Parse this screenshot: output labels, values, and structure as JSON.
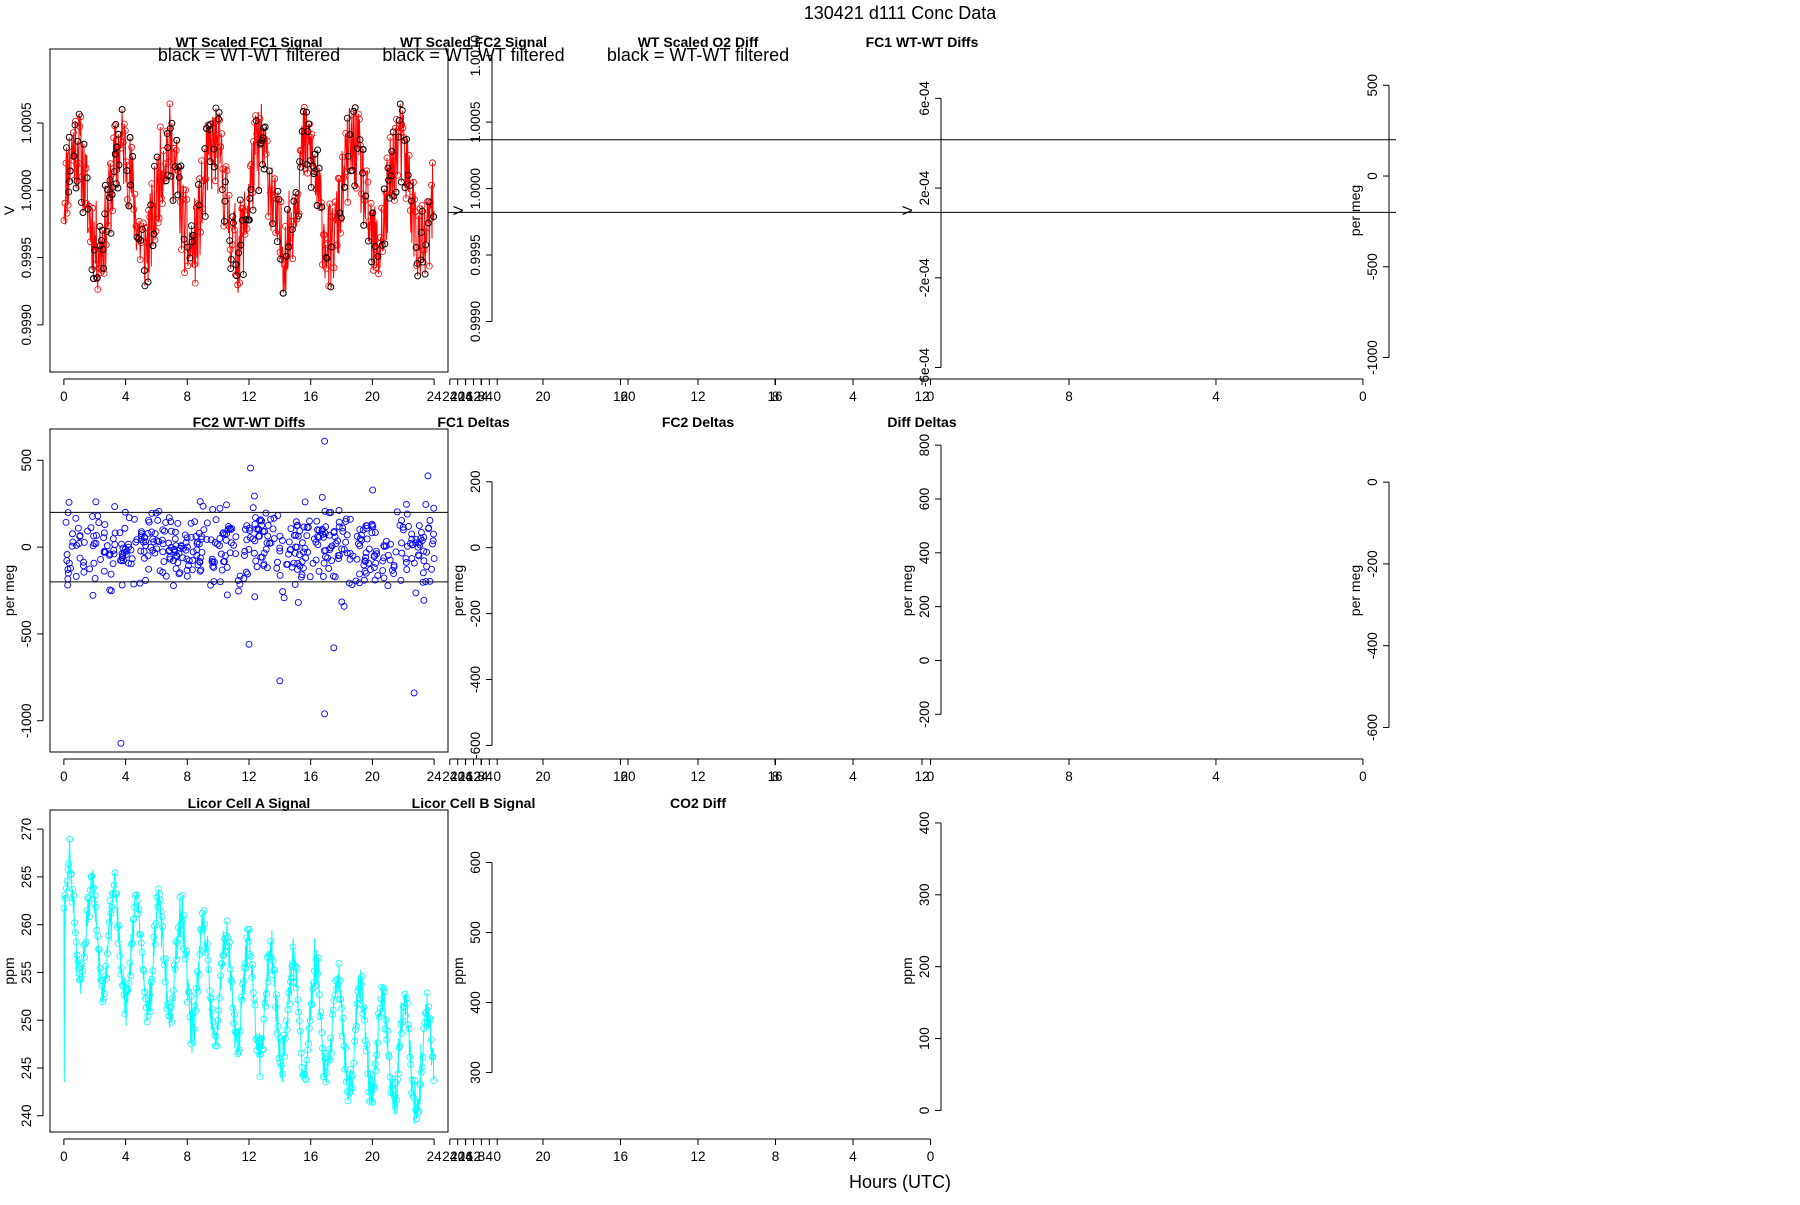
{
  "figure": {
    "title": "130421    d111    Conc Data",
    "xlabel": "Hours (UTC)"
  },
  "chart_data": [
    {
      "id": "p1",
      "type": "line",
      "title": "WT Scaled FC1 Signal",
      "annotation": "black = WT-WT filtered",
      "xlabel": "",
      "ylabel": "V",
      "xlim": [
        -0.9,
        24.9
      ],
      "ylim": [
        0.99865,
        1.00105
      ],
      "xticks": [
        0,
        4,
        8,
        12,
        16,
        20,
        24
      ],
      "yticks": [
        0.999,
        0.9995,
        1.0,
        1.0005
      ],
      "ytick_labels": [
        "0.9990",
        "0.9995",
        "1.0000",
        "1.0005"
      ],
      "grid": false,
      "color": "#ff0000",
      "overlay_color": "#000000",
      "gen": {
        "kind": "signal",
        "base": 0.99995,
        "amp": 0.00038,
        "slope": 0.0,
        "noise": 0.00042,
        "period": 3.0,
        "n": 700,
        "seed": 11,
        "overlay": 260
      }
    },
    {
      "id": "p2",
      "type": "line",
      "title": "WT Scaled FC2 Signal",
      "annotation": "black = WT-WT filtered",
      "xlabel": "",
      "ylabel": "V",
      "xlim": [
        -0.9,
        24.9
      ],
      "ylim": [
        0.99862,
        1.00105
      ],
      "xticks": [
        0,
        4,
        8,
        12,
        16,
        20,
        24
      ],
      "yticks": [
        0.999,
        0.9995,
        1.0,
        1.0005,
        1.001
      ],
      "ytick_labels": [
        "0.9990",
        "0.9995",
        "1.0000",
        "1.0005",
        "1.0010"
      ],
      "grid": false,
      "color": "#0000ff",
      "overlay_color": "#000000",
      "gen": {
        "kind": "signal",
        "base": 0.99992,
        "amp": 0.0004,
        "slope": 0.0,
        "noise": 0.00045,
        "period": 3.0,
        "n": 700,
        "seed": 23,
        "overlay": 240
      }
    },
    {
      "id": "p3",
      "type": "line",
      "title": "WT Scaled O2 Diff",
      "annotation": "black = WT-WT filtered",
      "xlabel": "",
      "ylabel": "V",
      "xlim": [
        -0.9,
        24.9
      ],
      "ylim": [
        -0.00062,
        0.00082
      ],
      "xticks": [
        0,
        4,
        8,
        12,
        16,
        20,
        24
      ],
      "yticks": [
        -0.0006,
        -0.0002,
        0.0002,
        0.0006
      ],
      "ytick_labels": [
        "-6e-04",
        "-2e-04",
        "2e-04",
        "6e-04"
      ],
      "grid": false,
      "color": "#a020f0",
      "overlay_color": "#000000",
      "gen": {
        "kind": "o2diff",
        "n": 620,
        "seed": 37,
        "overlay": 120
      }
    },
    {
      "id": "p4",
      "type": "scatter",
      "title": "FC1 WT-WT Diffs",
      "xlabel": "",
      "ylabel": "per meg",
      "xlim": [
        -0.9,
        24.9
      ],
      "ylim": [
        -1080,
        700
      ],
      "xticks": [
        0,
        4,
        8,
        12,
        16,
        20,
        24
      ],
      "yticks": [
        -1000,
        -500,
        0,
        500
      ],
      "ytick_labels": [
        "-1000",
        "-500",
        "0",
        "500"
      ],
      "hlines": [
        200,
        -200
      ],
      "grid": false,
      "color": "#ff0000",
      "gen": {
        "kind": "scatter",
        "n": 520,
        "sd": 125,
        "seed": 41,
        "outliers": [
          [
            4.3,
            640
          ],
          [
            3.7,
            -1010
          ],
          [
            11.9,
            520
          ],
          [
            15.8,
            520
          ],
          [
            20.0,
            525
          ],
          [
            20.0,
            -580
          ],
          [
            23.0,
            -935
          ],
          [
            22.5,
            450
          ]
        ]
      }
    },
    {
      "id": "p5",
      "type": "scatter",
      "title": "FC2 WT-WT Diffs",
      "xlabel": "",
      "ylabel": "per meg",
      "xlim": [
        -0.9,
        24.9
      ],
      "ylim": [
        -1180,
        680
      ],
      "xticks": [
        0,
        4,
        8,
        12,
        16,
        20,
        24
      ],
      "yticks": [
        -1000,
        -500,
        0,
        500
      ],
      "ytick_labels": [
        "-1000",
        "-500",
        "0",
        "500"
      ],
      "hlines": [
        200,
        -200
      ],
      "grid": false,
      "color": "#0000ff",
      "gen": {
        "kind": "scatter",
        "n": 520,
        "sd": 120,
        "seed": 53,
        "outliers": [
          [
            3.7,
            -1130
          ],
          [
            16.9,
            610
          ],
          [
            16.9,
            -960
          ],
          [
            14.0,
            -770
          ],
          [
            17.5,
            -580
          ],
          [
            12.0,
            -560
          ],
          [
            22.7,
            -840
          ],
          [
            12.1,
            455
          ],
          [
            23.6,
            410
          ]
        ]
      }
    },
    {
      "id": "p6",
      "type": "line",
      "title": "FC1 Deltas",
      "xlabel": "",
      "ylabel": "per meg",
      "xlim": [
        -0.9,
        24.9
      ],
      "ylim": [
        -620,
        360
      ],
      "xticks": [
        0,
        4,
        8,
        12,
        16,
        20,
        24
      ],
      "yticks": [
        -600,
        -400,
        -200,
        0,
        200
      ],
      "ytick_labels": [
        "-600",
        "-400",
        "-200",
        "0",
        "200"
      ],
      "grid": false,
      "color": "#ff0000",
      "gen": {
        "kind": "deltas1",
        "n": 560,
        "seed": 61
      }
    },
    {
      "id": "p7",
      "type": "line",
      "title": "FC2 Deltas",
      "xlabel": "",
      "ylabel": "per meg",
      "xlim": [
        -0.9,
        24.9
      ],
      "ylim": [
        -340,
        860
      ],
      "xticks": [
        0,
        4,
        8,
        12,
        16,
        20,
        24
      ],
      "yticks": [
        -200,
        0,
        200,
        400,
        600,
        800
      ],
      "ytick_labels": [
        "-200",
        "0",
        "200",
        "400",
        "600",
        "800"
      ],
      "grid": false,
      "color": "#0000ff",
      "gen": {
        "kind": "deltas2",
        "n": 560,
        "seed": 71
      }
    },
    {
      "id": "p8",
      "type": "line",
      "title": "Diff Deltas",
      "xlabel": "",
      "ylabel": "per meg",
      "xlim": [
        -0.9,
        24.9
      ],
      "ylim": [
        -660,
        130
      ],
      "xticks": [
        0,
        4,
        8,
        12,
        16,
        20,
        24
      ],
      "yticks": [
        -600,
        -400,
        -200,
        0
      ],
      "ytick_labels": [
        "-600",
        "-400",
        "-200",
        "0"
      ],
      "grid": false,
      "color": "#006400",
      "gen": {
        "kind": "diffdeltas",
        "n": 600,
        "seed": 83
      }
    },
    {
      "id": "p9",
      "type": "line",
      "title": "Licor Cell A Signal",
      "xlabel": "",
      "ylabel": "ppm",
      "xlim": [
        -0.9,
        24.9
      ],
      "ylim": [
        238.3,
        272
      ],
      "xticks": [
        0,
        4,
        8,
        12,
        16,
        20,
        24
      ],
      "yticks": [
        240,
        245,
        250,
        255,
        260,
        265,
        270
      ],
      "ytick_labels": [
        "240",
        "245",
        "250",
        "255",
        "260",
        "265",
        "270"
      ],
      "grid": false,
      "color": "#00ffff",
      "gen": {
        "kind": "licorA",
        "n": 900,
        "seed": 97
      }
    },
    {
      "id": "p10",
      "type": "line",
      "title": "Licor Cell B Signal",
      "xlabel": "",
      "ylabel": "ppm",
      "xlim": [
        -0.9,
        24.9
      ],
      "ylim": [
        215,
        675
      ],
      "xticks": [
        0,
        4,
        8,
        12,
        16,
        20,
        24
      ],
      "yticks": [
        300,
        400,
        500,
        600
      ],
      "ytick_labels": [
        "300",
        "400",
        "500",
        "600"
      ],
      "grid": false,
      "color": "#ffa500",
      "gen": {
        "kind": "licorB",
        "n": 700,
        "seed": 101
      }
    },
    {
      "id": "p11",
      "type": "line",
      "title": "CO2 Diff",
      "xlabel": "",
      "ylabel": "ppm",
      "xlim": [
        -0.9,
        24.9
      ],
      "ylim": [
        -30,
        418
      ],
      "xticks": [
        0,
        4,
        8,
        12,
        16,
        20,
        24
      ],
      "yticks": [
        0,
        100,
        200,
        300,
        400
      ],
      "ytick_labels": [
        "0",
        "100",
        "200",
        "300",
        "400"
      ],
      "grid": false,
      "color": "#8b0000",
      "gen": {
        "kind": "co2diff",
        "n": 700,
        "seed": 113
      }
    }
  ]
}
